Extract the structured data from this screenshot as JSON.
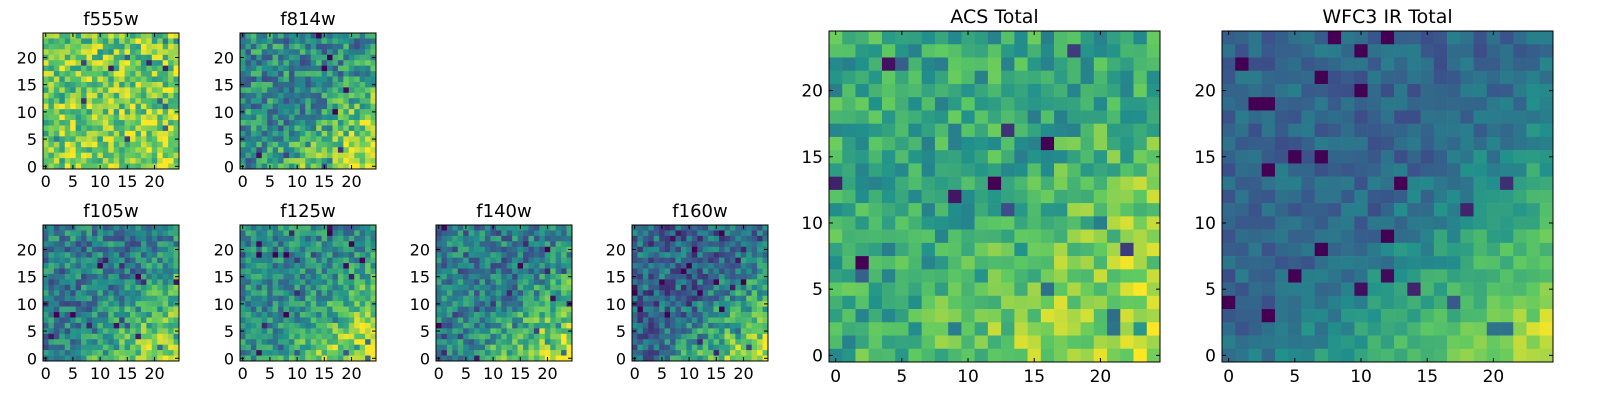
{
  "figure_colormap": [
    "#440154",
    "#3b528b",
    "#21918c",
    "#5ec962",
    "#fde725"
  ],
  "chart_data": [
    {
      "type": "heatmap",
      "title": "f555w",
      "grid_size": 25,
      "xlim": [
        0,
        25
      ],
      "ylim": [
        0,
        25
      ],
      "x_ticks": [
        0,
        5,
        10,
        15,
        20
      ],
      "y_ticks": [
        0,
        5,
        10,
        15,
        20
      ],
      "data_description": "noisy, high mean",
      "mean": 0.78,
      "noise": 0.25,
      "corner_boost": 0.15
    },
    {
      "type": "heatmap",
      "title": "f814w",
      "grid_size": 25,
      "xlim": [
        0,
        25
      ],
      "ylim": [
        0,
        25
      ],
      "x_ticks": [
        0,
        5,
        10,
        15,
        20
      ],
      "y_ticks": [
        0,
        5,
        10,
        15,
        20
      ],
      "mean": 0.55,
      "noise": 0.25,
      "corner_boost": 0.5
    },
    {
      "type": "heatmap",
      "title": "f105w",
      "grid_size": 25,
      "xlim": [
        0,
        25
      ],
      "ylim": [
        0,
        25
      ],
      "x_ticks": [
        0,
        5,
        10,
        15,
        20
      ],
      "y_ticks": [
        0,
        5,
        10,
        15,
        20
      ],
      "mean": 0.5,
      "noise": 0.22,
      "corner_boost": 0.5
    },
    {
      "type": "heatmap",
      "title": "f125w",
      "grid_size": 25,
      "xlim": [
        0,
        25
      ],
      "ylim": [
        0,
        25
      ],
      "x_ticks": [
        0,
        5,
        10,
        15,
        20
      ],
      "y_ticks": [
        0,
        5,
        10,
        15,
        20
      ],
      "mean": 0.55,
      "noise": 0.2,
      "corner_boost": 0.5
    },
    {
      "type": "heatmap",
      "title": "f140w",
      "grid_size": 25,
      "xlim": [
        0,
        25
      ],
      "ylim": [
        0,
        25
      ],
      "x_ticks": [
        0,
        5,
        10,
        15,
        20
      ],
      "y_ticks": [
        0,
        5,
        10,
        15,
        20
      ],
      "mean": 0.5,
      "noise": 0.22,
      "corner_boost": 0.55
    },
    {
      "type": "heatmap",
      "title": "f160w",
      "grid_size": 25,
      "xlim": [
        0,
        25
      ],
      "ylim": [
        0,
        25
      ],
      "x_ticks": [
        0,
        5,
        10,
        15,
        20
      ],
      "y_ticks": [
        0,
        5,
        10,
        15,
        20
      ],
      "mean": 0.42,
      "noise": 0.22,
      "corner_boost": 0.6
    },
    {
      "type": "heatmap",
      "title": "ACS Total",
      "grid_size": 25,
      "xlim": [
        0,
        25
      ],
      "ylim": [
        0,
        25
      ],
      "x_ticks": [
        0,
        5,
        10,
        15,
        20
      ],
      "y_ticks": [
        0,
        5,
        10,
        15,
        20
      ],
      "mean": 0.65,
      "noise": 0.18,
      "corner_boost": 0.35
    },
    {
      "type": "heatmap",
      "title": "WFC3 IR Total",
      "grid_size": 25,
      "xlim": [
        0,
        25
      ],
      "ylim": [
        0,
        25
      ],
      "x_ticks": [
        0,
        5,
        10,
        15,
        20
      ],
      "y_ticks": [
        0,
        5,
        10,
        15,
        20
      ],
      "mean": 0.42,
      "noise": 0.1,
      "corner_boost": 0.6
    }
  ]
}
